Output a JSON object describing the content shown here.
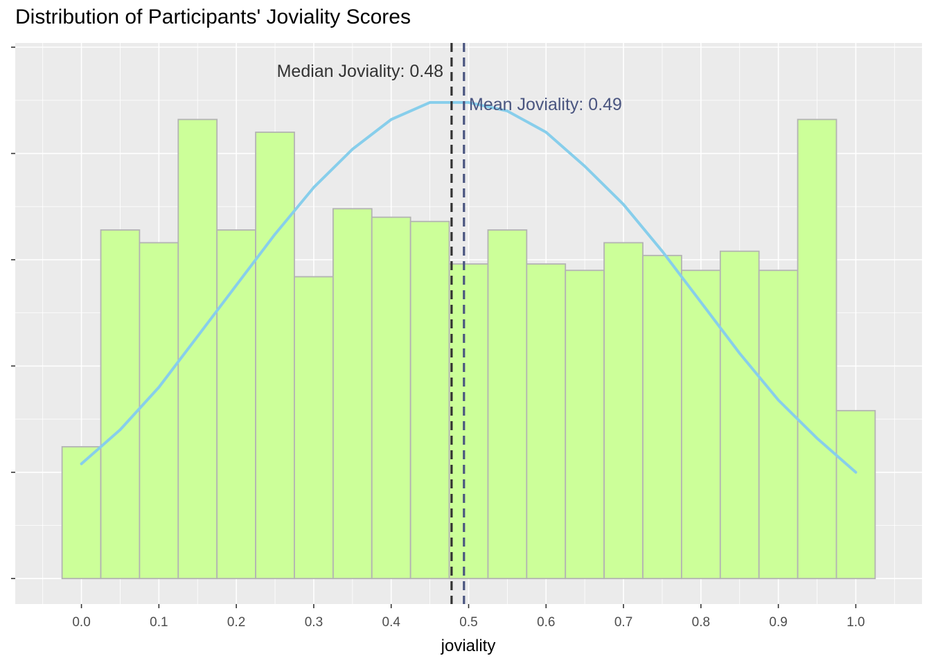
{
  "chart_data": {
    "type": "bar",
    "title": "Distribution of Participants' Joviality Scores",
    "xlabel": "joviality",
    "ylabel": "",
    "x_ticks": [
      "0.0",
      "0.1",
      "0.2",
      "0.3",
      "0.4",
      "0.5",
      "0.6",
      "0.7",
      "0.8",
      "0.9",
      "1.0"
    ],
    "xlim": [
      -0.0855,
      1.0855
    ],
    "ylim": [
      -0.06,
      1.26
    ],
    "bin_width": 0.05,
    "bin_centers": [
      0.0,
      0.05,
      0.1,
      0.15,
      0.2,
      0.25,
      0.3,
      0.35,
      0.4,
      0.45,
      0.5,
      0.55,
      0.6,
      0.65,
      0.7,
      0.75,
      0.8,
      0.85,
      0.9,
      0.95,
      1.0
    ],
    "values": [
      0.31,
      0.82,
      0.79,
      1.08,
      0.82,
      1.05,
      0.71,
      0.87,
      0.85,
      0.84,
      0.74,
      0.82,
      0.74,
      0.725,
      0.79,
      0.76,
      0.725,
      0.77,
      0.725,
      1.08,
      0.395
    ],
    "density_curve": {
      "x": [
        0.0,
        0.05,
        0.1,
        0.15,
        0.2,
        0.25,
        0.3,
        0.35,
        0.4,
        0.45,
        0.5,
        0.55,
        0.6,
        0.65,
        0.7,
        0.75,
        0.8,
        0.85,
        0.9,
        0.95,
        1.0
      ],
      "y": [
        0.27,
        0.35,
        0.45,
        0.57,
        0.69,
        0.81,
        0.92,
        1.01,
        1.08,
        1.12,
        1.12,
        1.1,
        1.05,
        0.97,
        0.88,
        0.77,
        0.65,
        0.53,
        0.42,
        0.33,
        0.25
      ],
      "color": "#87ceeb"
    },
    "reference_lines": [
      {
        "label": "Median Joviality: 0.48",
        "value": 0.478,
        "color": "#333333"
      },
      {
        "label": "Mean Joviality: 0.49",
        "value": 0.494,
        "color": "#4a5580"
      }
    ],
    "bar_fill": "#ccff99",
    "bar_outline": "#b3b3b3",
    "panel_background": "#ebebeb",
    "grid": true,
    "legend": "none"
  }
}
